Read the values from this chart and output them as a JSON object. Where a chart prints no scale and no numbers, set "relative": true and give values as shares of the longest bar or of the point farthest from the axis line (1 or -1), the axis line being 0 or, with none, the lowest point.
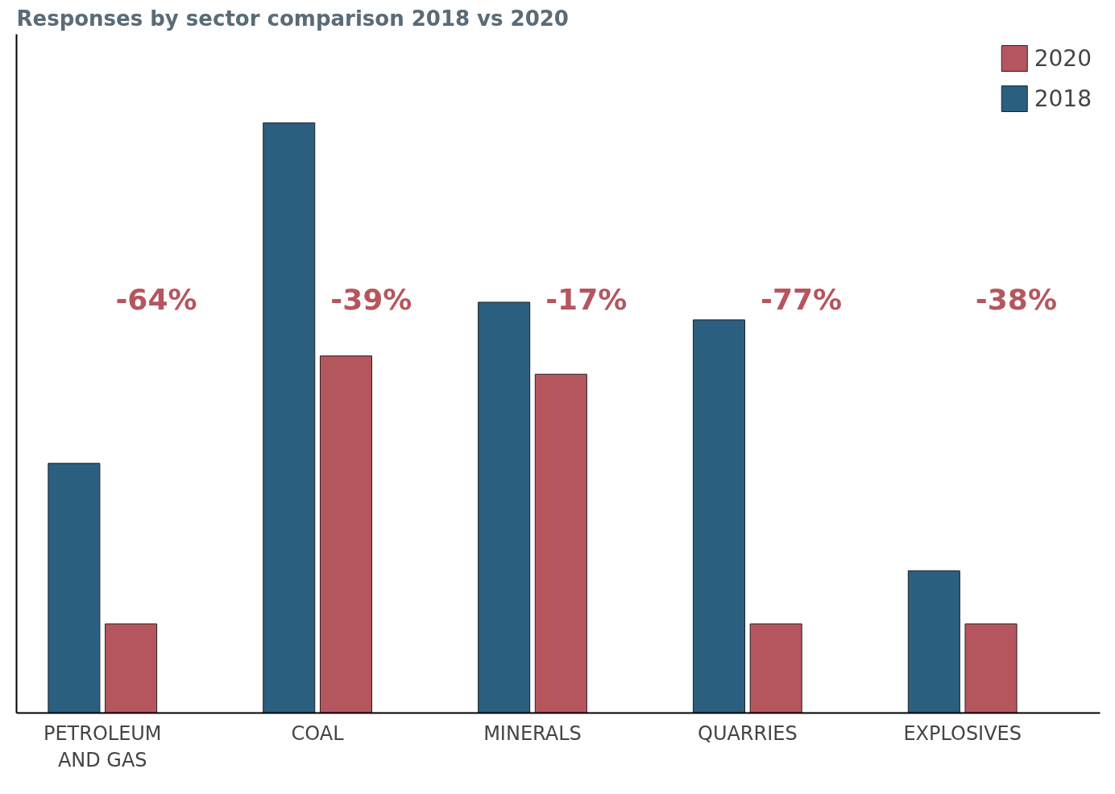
{
  "chart_data": {
    "type": "bar",
    "title": "Responses by sector comparison 2018 vs 2020",
    "relative": true,
    "categories": [
      "PETROLEUM\nAND GAS",
      "COAL",
      "MINERALS",
      "QUARRIES",
      "EXPLOSIVES"
    ],
    "series": [
      {
        "name": "2018",
        "color": "#2a5f80",
        "values": [
          0.423,
          1,
          0.696,
          0.666,
          0.241
        ]
      },
      {
        "name": "2020",
        "color": "#b5565e",
        "values": [
          0.151,
          0.605,
          0.574,
          0.151,
          0.151
        ]
      }
    ],
    "annotations": [
      "-64%",
      "-39%",
      "-17%",
      "-77%",
      "-38%"
    ],
    "legend": "top right",
    "grid": false
  }
}
